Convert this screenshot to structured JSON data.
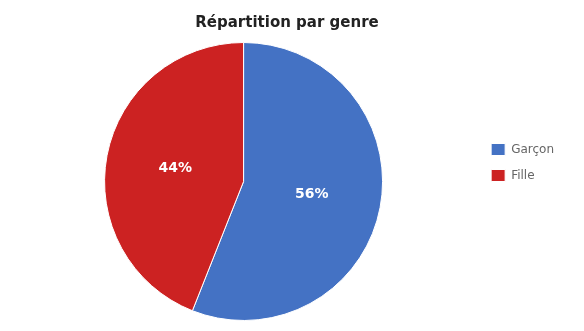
{
  "chart_data": {
    "type": "pie",
    "title": "Répartition par genre",
    "categories": [
      "Garçon",
      "Fille"
    ],
    "values": [
      56,
      44
    ],
    "value_labels": [
      "56%",
      "44%"
    ],
    "data_labels": true,
    "colors": [
      "#4472C4",
      "#CC2222"
    ],
    "legend": "right"
  }
}
